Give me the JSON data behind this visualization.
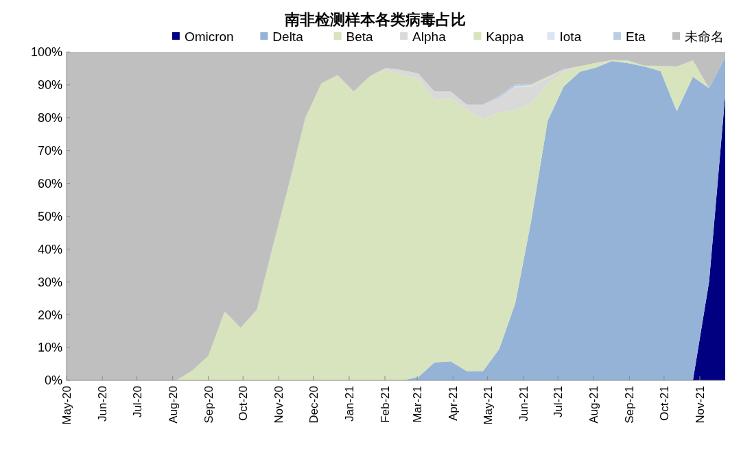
{
  "chart_data": {
    "type": "area",
    "stacked": true,
    "title": "南非检测样本各类病毒占比",
    "legend": "top",
    "x": [
      "2020-05-01",
      "2020-05-12",
      "2020-05-26",
      "2020-06-09",
      "2020-06-23",
      "2020-07-07",
      "2020-07-21",
      "2020-08-04",
      "2020-08-18",
      "2020-09-01",
      "2020-09-15",
      "2020-09-29",
      "2020-10-13",
      "2020-10-27",
      "2020-11-10",
      "2020-11-24",
      "2020-12-08",
      "2020-12-22",
      "2021-01-05",
      "2021-01-19",
      "2021-02-02",
      "2021-02-16",
      "2021-03-02",
      "2021-03-16",
      "2021-03-30",
      "2021-04-13",
      "2021-04-27",
      "2021-05-11",
      "2021-05-25",
      "2021-06-08",
      "2021-06-22",
      "2021-07-06",
      "2021-07-20",
      "2021-08-03",
      "2021-08-17",
      "2021-08-31",
      "2021-09-14",
      "2021-09-28",
      "2021-10-12",
      "2021-10-26",
      "2021-11-09",
      "2021-11-23"
    ],
    "series": [
      {
        "name": "Omicron",
        "color": "#000080",
        "values": [
          null,
          null,
          null,
          null,
          null,
          null,
          null,
          null,
          null,
          null,
          null,
          null,
          null,
          null,
          null,
          null,
          null,
          null,
          null,
          null,
          null,
          null,
          null,
          null,
          null,
          null,
          null,
          null,
          null,
          null,
          null,
          null,
          null,
          null,
          null,
          null,
          null,
          null,
          null,
          0,
          30,
          87
        ]
      },
      {
        "name": "Delta",
        "color": "#95b3d7",
        "values": [
          null,
          null,
          null,
          null,
          null,
          null,
          null,
          null,
          null,
          null,
          null,
          null,
          null,
          null,
          null,
          null,
          null,
          null,
          null,
          null,
          null,
          0,
          1,
          5.5,
          5.8,
          2.8,
          2.8,
          9.5,
          23.5,
          49,
          79,
          89.5,
          94,
          95.3,
          97.3,
          96.6,
          95.6,
          94.2,
          82,
          92.5,
          59,
          11.5
        ]
      },
      {
        "name": "Beta",
        "color": "#d7e4bd",
        "values": [
          null,
          null,
          null,
          null,
          null,
          null,
          null,
          0,
          3,
          7.5,
          21,
          16,
          21.5,
          41,
          60,
          80,
          90.5,
          93,
          88,
          92.7,
          94.7,
          93,
          91,
          80,
          80.2,
          79.7,
          76.7,
          72.1,
          58.8,
          35.5,
          11.5,
          4.5,
          1.7,
          1.4,
          0.3,
          0.8,
          0.3,
          1.6,
          13.6,
          5,
          0,
          null
        ]
      },
      {
        "name": "Alpha",
        "color": "#d9d9d9",
        "values": [
          null,
          null,
          null,
          null,
          null,
          null,
          null,
          null,
          null,
          null,
          null,
          null,
          null,
          null,
          null,
          null,
          null,
          null,
          null,
          0,
          0.5,
          1.5,
          1.5,
          2.5,
          2,
          1.5,
          4.5,
          4.4,
          7,
          5,
          1.5,
          0.8,
          0,
          null,
          null,
          null,
          null,
          null,
          null,
          null,
          null,
          null
        ]
      },
      {
        "name": "Kappa",
        "color": "#d8e4bc",
        "values": [
          null,
          null,
          null,
          null,
          null,
          null,
          null,
          null,
          null,
          null,
          null,
          null,
          null,
          null,
          null,
          null,
          null,
          null,
          null,
          null,
          null,
          null,
          null,
          null,
          null,
          null,
          null,
          null,
          0,
          0.5,
          0.5,
          0,
          null,
          null,
          null,
          null,
          null,
          null,
          null,
          null,
          null,
          null
        ]
      },
      {
        "name": "Iota",
        "color": "#dce6f2",
        "values": [
          null,
          null,
          null,
          null,
          null,
          null,
          null,
          null,
          null,
          null,
          null,
          null,
          null,
          null,
          null,
          null,
          null,
          null,
          null,
          null,
          null,
          null,
          null,
          null,
          null,
          null,
          null,
          0,
          0.2,
          0,
          null,
          null,
          null,
          null,
          null,
          null,
          null,
          null,
          null,
          null,
          null,
          null
        ]
      },
      {
        "name": "Eta",
        "color": "#b9cde5",
        "values": [
          null,
          null,
          null,
          null,
          null,
          null,
          null,
          null,
          null,
          null,
          null,
          null,
          null,
          null,
          null,
          null,
          null,
          null,
          null,
          null,
          null,
          null,
          null,
          null,
          null,
          null,
          0,
          0.7,
          0.6,
          0.3,
          0,
          null,
          null,
          null,
          null,
          null,
          null,
          null,
          null,
          null,
          null,
          null
        ]
      },
      {
        "name": "未命名",
        "color": "#bfbfbf",
        "values": [
          100,
          100,
          100,
          100,
          100,
          100,
          100,
          100,
          97,
          92.5,
          79,
          84,
          78.5,
          59,
          40,
          20,
          9.5,
          7,
          12,
          7.3,
          4.8,
          5.5,
          6.5,
          12,
          12,
          16,
          16,
          13.3,
          9.9,
          9.7,
          7.5,
          5.2,
          4.3,
          3.3,
          2.4,
          2.6,
          4.1,
          4.2,
          4.4,
          2.5,
          11,
          1.5
        ]
      }
    ],
    "xlim": [
      "2020-05-01",
      "2021-11-23"
    ],
    "xticks": [
      {
        "value": "2020-05-01",
        "label": "May-20"
      },
      {
        "value": "2020-06-01",
        "label": "Jun-20"
      },
      {
        "value": "2020-07-01",
        "label": "Jul-20"
      },
      {
        "value": "2020-08-01",
        "label": "Aug-20"
      },
      {
        "value": "2020-09-01",
        "label": "Sep-20"
      },
      {
        "value": "2020-10-01",
        "label": "Oct-20"
      },
      {
        "value": "2020-11-01",
        "label": "Nov-20"
      },
      {
        "value": "2020-12-01",
        "label": "Dec-20"
      },
      {
        "value": "2021-01-01",
        "label": "Jan-21"
      },
      {
        "value": "2021-02-01",
        "label": "Feb-21"
      },
      {
        "value": "2021-03-01",
        "label": "Mar-21"
      },
      {
        "value": "2021-04-01",
        "label": "Apr-21"
      },
      {
        "value": "2021-05-01",
        "label": "May-21"
      },
      {
        "value": "2021-06-01",
        "label": "Jun-21"
      },
      {
        "value": "2021-07-01",
        "label": "Jul-21"
      },
      {
        "value": "2021-08-01",
        "label": "Aug-21"
      },
      {
        "value": "2021-09-01",
        "label": "Sep-21"
      },
      {
        "value": "2021-10-01",
        "label": "Oct-21"
      },
      {
        "value": "2021-11-01",
        "label": "Nov-21"
      }
    ],
    "ylim": [
      0,
      100
    ],
    "yticks": [
      {
        "value": 0,
        "label": "0%"
      },
      {
        "value": 10,
        "label": "10%"
      },
      {
        "value": 20,
        "label": "20%"
      },
      {
        "value": 30,
        "label": "30%"
      },
      {
        "value": 40,
        "label": "40%"
      },
      {
        "value": 50,
        "label": "50%"
      },
      {
        "value": 60,
        "label": "60%"
      },
      {
        "value": 70,
        "label": "70%"
      },
      {
        "value": 80,
        "label": "80%"
      },
      {
        "value": 90,
        "label": "90%"
      },
      {
        "value": 100,
        "label": "100%"
      }
    ],
    "grid": false
  }
}
